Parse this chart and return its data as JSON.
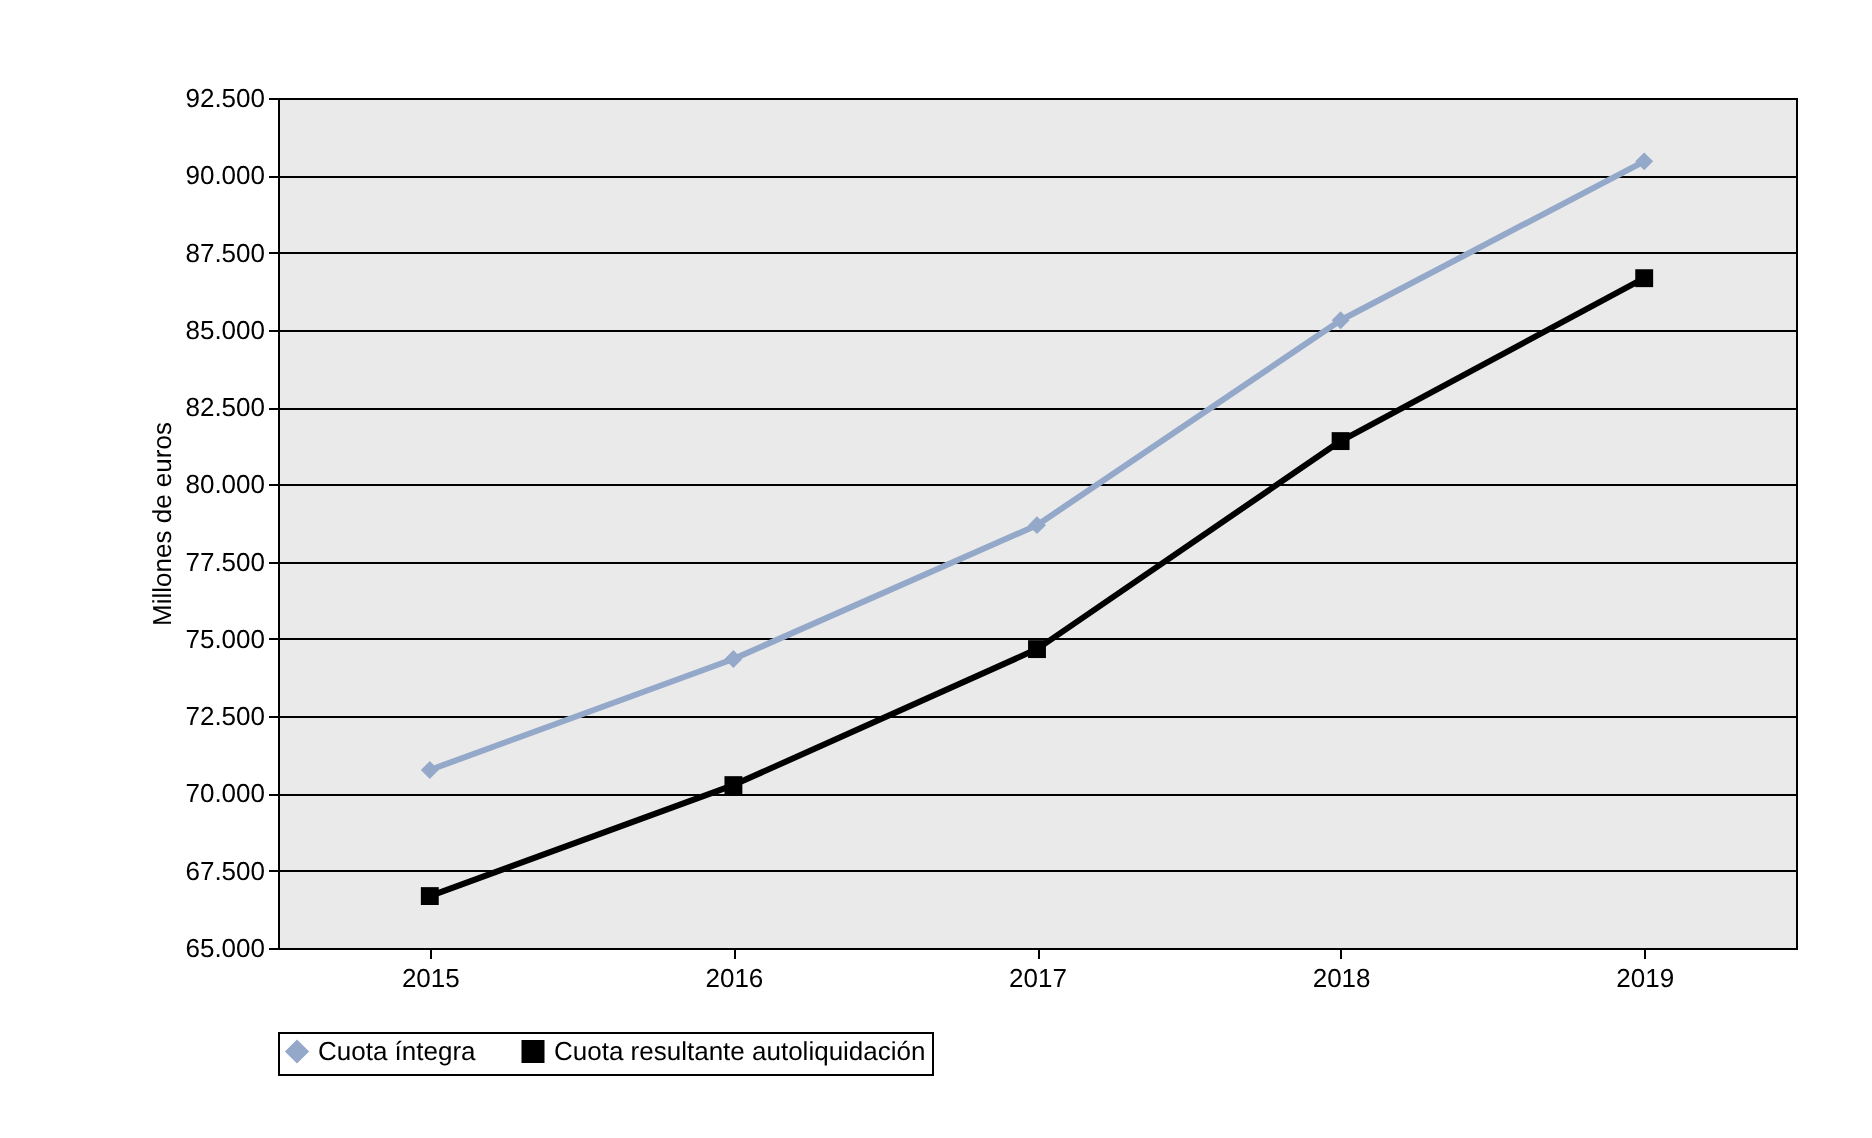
{
  "chart_data": {
    "type": "line",
    "ylabel": "Millones de euros",
    "categories": [
      "2015",
      "2016",
      "2017",
      "2018",
      "2019"
    ],
    "series": [
      {
        "name": "Cuota íntegra",
        "color": "#94a8c9",
        "marker": "diamond",
        "values": [
          70760,
          74350,
          78680,
          85310,
          90450
        ]
      },
      {
        "name": "Cuota resultante autoliquidación",
        "color": "#000000",
        "marker": "square",
        "values": [
          66680,
          70270,
          74670,
          81400,
          86670
        ]
      }
    ],
    "ylim": [
      65000,
      92500
    ],
    "yticks": [
      {
        "value": 65000,
        "label": "65.000"
      },
      {
        "value": 67500,
        "label": "67.500"
      },
      {
        "value": 70000,
        "label": "70.000"
      },
      {
        "value": 72500,
        "label": "72.500"
      },
      {
        "value": 75000,
        "label": "75.000"
      },
      {
        "value": 77500,
        "label": "77.500"
      },
      {
        "value": 80000,
        "label": "80.000"
      },
      {
        "value": 82500,
        "label": "82.500"
      },
      {
        "value": 85000,
        "label": "85.000"
      },
      {
        "value": 87500,
        "label": "87.500"
      },
      {
        "value": 90000,
        "label": "90.000"
      },
      {
        "value": 92500,
        "label": "92.500"
      }
    ],
    "grid": "y",
    "legend": "bottom",
    "line_style": "solid"
  }
}
